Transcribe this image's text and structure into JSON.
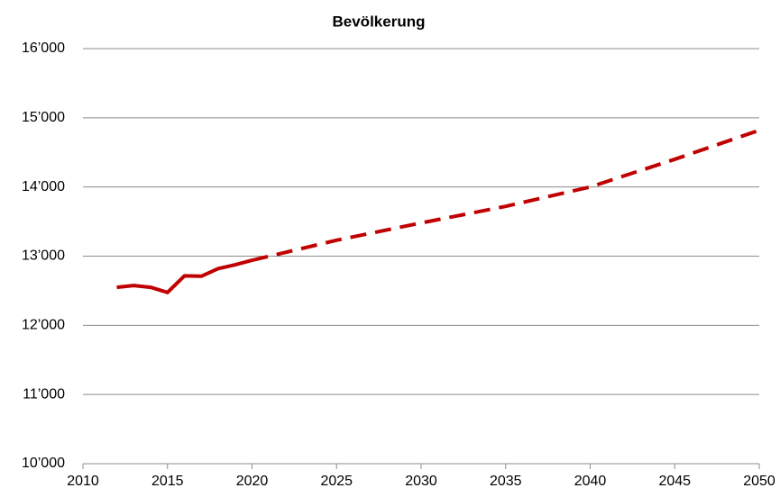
{
  "chart_data": {
    "type": "line",
    "title": "Bevölkerung",
    "series": [
      {
        "color": "#c00000",
        "dashed": false,
        "x": [
          2012,
          2013,
          2014,
          2015,
          2016,
          2017,
          2018,
          2019,
          2020
        ],
        "values": [
          12550,
          12575,
          12550,
          12475,
          12715,
          12710,
          12820,
          12875,
          12940
        ]
      },
      {
        "color": "#c00000",
        "dashed": true,
        "x": [
          2020,
          2025,
          2030,
          2035,
          2040,
          2045,
          2050
        ],
        "values": [
          12940,
          13230,
          13480,
          13720,
          14000,
          14400,
          14820
        ]
      }
    ],
    "xlim": [
      2010,
      2050
    ],
    "xticks": [
      2010,
      2015,
      2020,
      2025,
      2030,
      2035,
      2040,
      2045,
      2050
    ],
    "ylim": [
      10000,
      16000
    ],
    "yticks": [
      {
        "value": 10000,
        "label": "10’000"
      },
      {
        "value": 11000,
        "label": "11’000"
      },
      {
        "value": 12000,
        "label": "12’000"
      },
      {
        "value": 13000,
        "label": "13’000"
      },
      {
        "value": 14000,
        "label": "14’000"
      },
      {
        "value": 15000,
        "label": "15’000"
      },
      {
        "value": 16000,
        "label": "16’000"
      }
    ],
    "grid": true
  }
}
